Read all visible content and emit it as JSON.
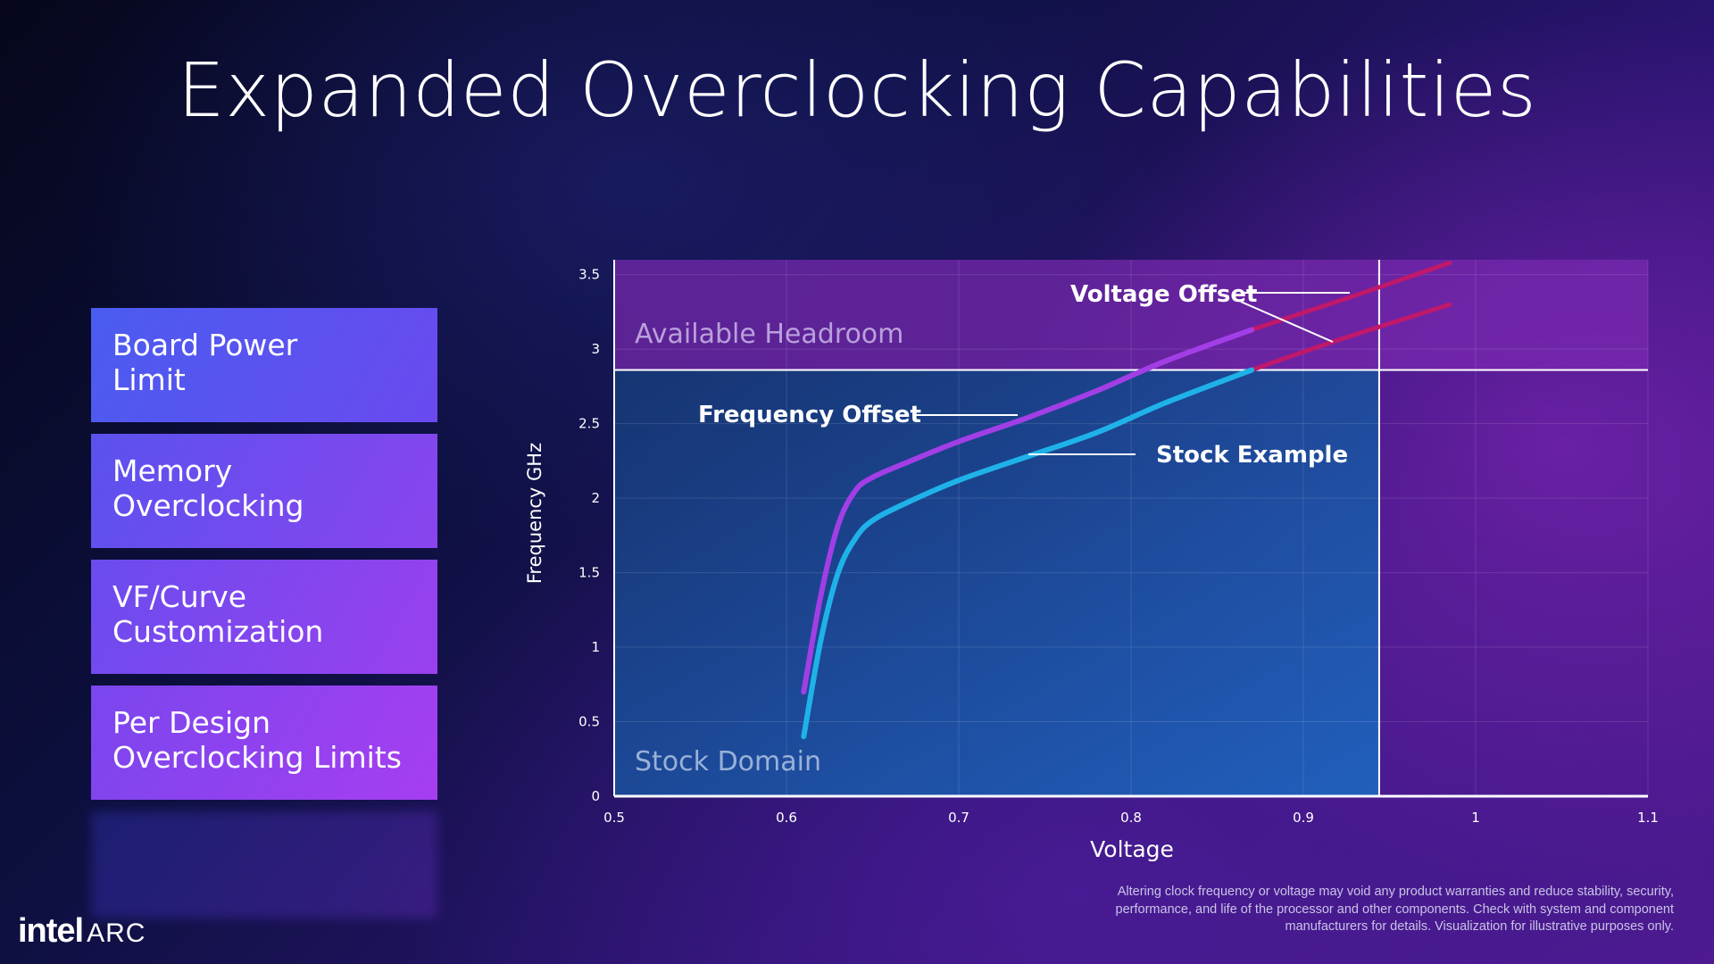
{
  "slide": {
    "title": "Expanded Overclocking Capabilities",
    "feature_cards": [
      {
        "line1": "Board Power",
        "line2": "Limit"
      },
      {
        "line1": "Memory",
        "line2": "Overclocking"
      },
      {
        "line1": "VF/Curve",
        "line2": "Customization"
      },
      {
        "line1": "Per Design",
        "line2": "Overclocking Limits"
      }
    ],
    "logo": {
      "brand": "intel",
      "product": "ARC"
    },
    "disclaimer": [
      "Altering clock frequency or voltage may void any product warranties and reduce stability, security,",
      "performance, and life of the processor and other components.  Check with system and component",
      "manufacturers for details. Visualization for illustrative purposes only."
    ]
  },
  "chart_data": {
    "type": "line",
    "title": "",
    "xlabel": "Voltage",
    "ylabel": "Frequency GHz",
    "xlim": [
      0.5,
      1.1
    ],
    "ylim": [
      0,
      3.6
    ],
    "x_ticks": [
      0.5,
      0.6,
      0.7,
      0.8,
      0.9,
      1,
      1.1
    ],
    "x_tick_labels": [
      "0.5",
      "0.6",
      "0.7",
      "0.8",
      "0.9",
      "1",
      "1.1"
    ],
    "y_ticks": [
      0,
      0.5,
      1,
      1.5,
      2,
      2.5,
      3,
      3.5
    ],
    "y_tick_labels": [
      "0",
      "0.5",
      "1",
      "1.5",
      "2",
      "2.5",
      "3",
      "3.5"
    ],
    "grid": true,
    "regions": [
      {
        "name": "Stock Domain",
        "x": [
          0.5,
          0.944
        ],
        "y": [
          0,
          2.86
        ],
        "color": "#1f5fb8"
      },
      {
        "name": "Available Headroom",
        "x": [
          0.5,
          1.1
        ],
        "y": [
          2.86,
          3.6
        ],
        "color": "#7a2ab0"
      }
    ],
    "series": [
      {
        "name": "Stock Example",
        "color": "#1fb2e8",
        "extension_color": "#c0186a",
        "x": [
          0.61,
          0.62,
          0.63,
          0.64,
          0.65,
          0.67,
          0.7,
          0.74,
          0.78,
          0.82,
          0.87
        ],
        "y": [
          0.4,
          1.05,
          1.5,
          1.73,
          1.85,
          1.97,
          2.12,
          2.28,
          2.44,
          2.64,
          2.86
        ],
        "extension_x": [
          0.87,
          0.92,
          0.985
        ],
        "extension_y": [
          2.86,
          3.06,
          3.3
        ]
      },
      {
        "name": "Frequency Offset",
        "color": "#a23ee6",
        "extension_color": "#c0186a",
        "x": [
          0.61,
          0.62,
          0.63,
          0.64,
          0.65,
          0.67,
          0.7,
          0.74,
          0.78,
          0.82,
          0.87
        ],
        "y": [
          0.7,
          1.35,
          1.82,
          2.05,
          2.14,
          2.24,
          2.38,
          2.54,
          2.72,
          2.92,
          3.13
        ],
        "extension_x": [
          0.87,
          0.93,
          0.985
        ],
        "extension_y": [
          3.13,
          3.36,
          3.58
        ]
      }
    ],
    "annotations": [
      {
        "text": "Voltage Offset"
      },
      {
        "text": "Frequency Offset"
      },
      {
        "text": "Stock Example"
      },
      {
        "text": "Available Headroom"
      },
      {
        "text": "Stock Domain"
      }
    ]
  }
}
